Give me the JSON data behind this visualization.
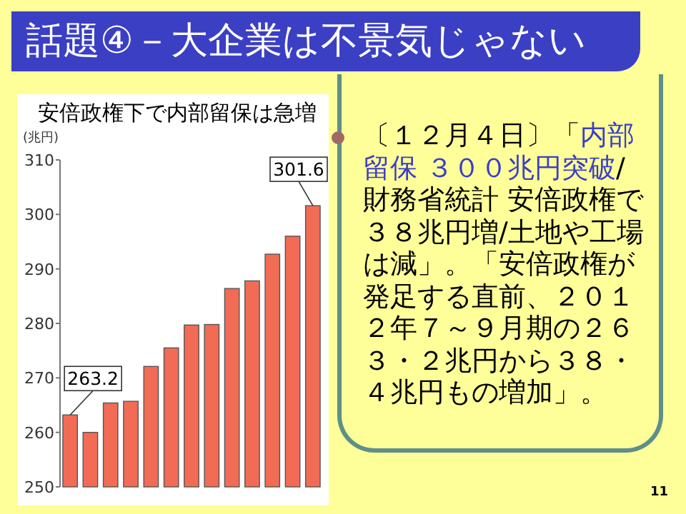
{
  "chart_data": {
    "type": "bar",
    "title": "安倍政権下で内部留保は急増",
    "ylabel": "(兆円)",
    "categories": [
      null,
      null,
      null,
      null,
      null,
      null,
      null,
      null,
      null,
      null,
      null,
      null,
      null
    ],
    "values": [
      263.2,
      260.0,
      265.4,
      265.7,
      272.1,
      275.5,
      279.7,
      279.8,
      286.4,
      287.8,
      292.7,
      296.0,
      301.6
    ],
    "value_labels": [
      "263.2",
      null,
      null,
      null,
      null,
      null,
      null,
      null,
      null,
      null,
      null,
      null,
      "301.6"
    ],
    "color": "#f26b55",
    "ylim": [
      250,
      310
    ],
    "yticks": [
      250,
      260,
      270,
      280,
      290,
      300,
      310
    ],
    "grid": false,
    "annotations": [
      "話題④－大企業は不景気じゃない",
      "〔１２月４日〕「",
      "内部留保 ３００兆円突破",
      "/財務省統計 安倍政権で３８兆円増/土地や工場は減」。「安倍政権が発足する直前、２０１２年７～９月期の２６３・２兆円から３８・４兆円もの増加」。",
      "11"
    ]
  }
}
